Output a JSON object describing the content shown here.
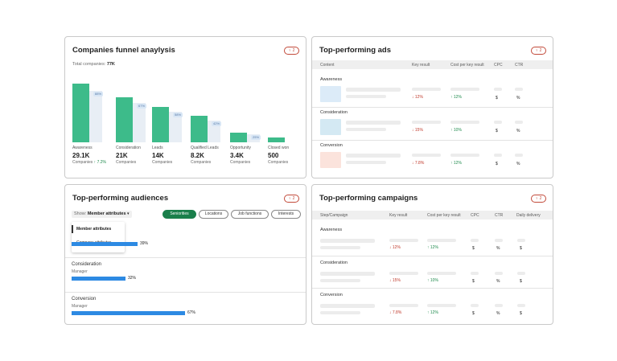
{
  "funnel": {
    "title": "Companies funnel anaylysis",
    "pill": "2",
    "total_label": "Total companies:",
    "total_value": "77K",
    "stages": [
      {
        "label": "Awareness",
        "value": "29.1K",
        "sub": "Companies",
        "change": "7.2%",
        "badge": "88%"
      },
      {
        "label": "Consideration",
        "value": "21K",
        "sub": "Companies",
        "change": "",
        "badge": "67%"
      },
      {
        "label": "Leads",
        "value": "14K",
        "sub": "Companies",
        "change": "",
        "badge": "58%"
      },
      {
        "label": "Qualified Leads",
        "value": "8.2K",
        "sub": "Companies",
        "change": "",
        "badge": "42%"
      },
      {
        "label": "Opportunity",
        "value": "3.4K",
        "sub": "Companies",
        "change": "",
        "badge": "25%"
      },
      {
        "label": "Closed won",
        "value": "500",
        "sub": "Companies",
        "change": "",
        "badge": ""
      }
    ]
  },
  "ads": {
    "title": "Top-performing ads",
    "pill": "2",
    "headers": [
      "Content",
      "Key result",
      "Cost per key result",
      "CPC",
      "CTR"
    ],
    "rows": [
      {
        "label": "Awareness",
        "key": "12%",
        "cost": "12%",
        "cpc": "$",
        "ctr": "%",
        "thumb": "#dcebf8"
      },
      {
        "label": "Consideration",
        "key": "15%",
        "cost": "10%",
        "cpc": "$",
        "ctr": "%",
        "thumb": "#d4e9f3"
      },
      {
        "label": "Conversion",
        "key": "7.8%",
        "cost": "12%",
        "cpc": "$",
        "ctr": "%",
        "thumb": "#fbe3dc"
      }
    ]
  },
  "audiences": {
    "title": "Top-performing audiences",
    "pill": "2",
    "show_label": "Show:",
    "show_value": "Member attributes",
    "dropdown_options": [
      "Member attributes",
      "Company attributes"
    ],
    "chips": [
      "Seniorities",
      "Locations",
      "Job functions",
      "Interests"
    ],
    "rows": [
      {
        "label": "",
        "sub": "",
        "value": "39%",
        "pct": 39
      },
      {
        "label": "Consideration",
        "sub": "Manager",
        "value": "32%",
        "pct": 32
      },
      {
        "label": "Conversion",
        "sub": "Manager",
        "value": "67%",
        "pct": 67
      }
    ]
  },
  "campaigns": {
    "title": "Top-performing campaigns",
    "pill": "2",
    "headers": [
      "Step/Campaign",
      "Key result",
      "Cost per key result",
      "CPC",
      "CTR",
      "Daily delivery"
    ],
    "rows": [
      {
        "label": "Awareness",
        "key": "12%",
        "cost": "12%",
        "cpc": "$",
        "ctr": "%",
        "daily": "$"
      },
      {
        "label": "Consideration",
        "key": "15%",
        "cost": "10%",
        "cpc": "$",
        "ctr": "%",
        "daily": "$"
      },
      {
        "label": "Conversion",
        "key": "7.8%",
        "cost": "12%",
        "cpc": "$",
        "ctr": "%",
        "daily": "$"
      }
    ]
  },
  "colors": {
    "green": "#3dbb8a",
    "light_bar": "#e8eef5",
    "blue_bar": "#2d8ae3",
    "neg": "#c0392b",
    "pos": "#1e8a4c"
  }
}
